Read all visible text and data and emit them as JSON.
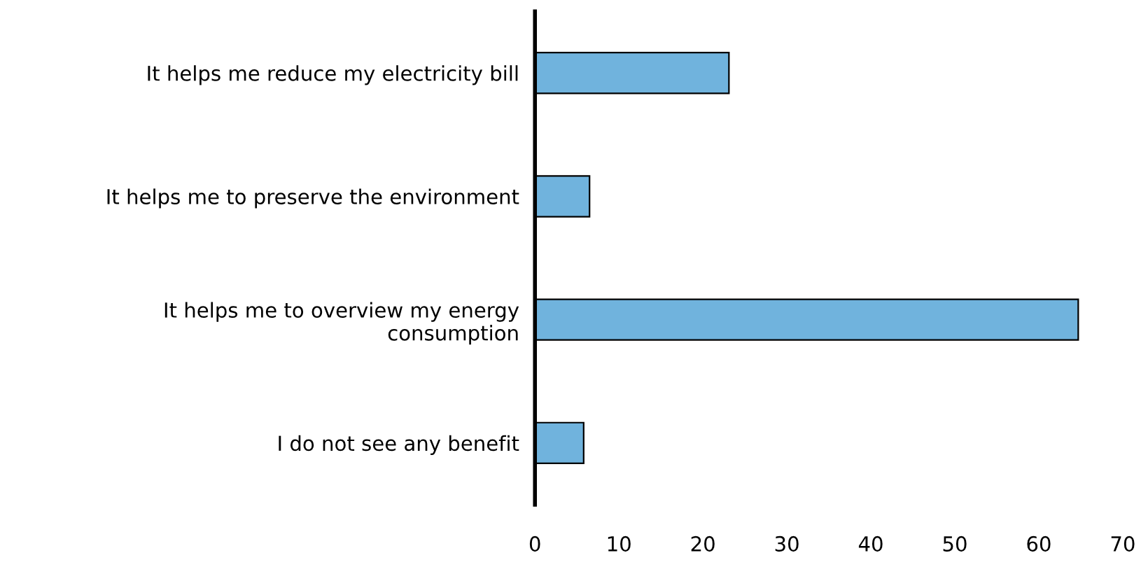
{
  "chart_data": {
    "type": "bar",
    "orientation": "horizontal",
    "categories": [
      "It helps me reduce my electricity bill",
      "It helps me to preserve the environment",
      "It helps me to overview my energy\nconsumption",
      "I do not see any benefit"
    ],
    "values": [
      23.1,
      6.5,
      64.7,
      5.8
    ],
    "color": "#70b3dd",
    "xlim": [
      0,
      70
    ],
    "xticks": [
      0,
      10,
      20,
      30,
      40,
      50,
      60,
      70
    ]
  }
}
